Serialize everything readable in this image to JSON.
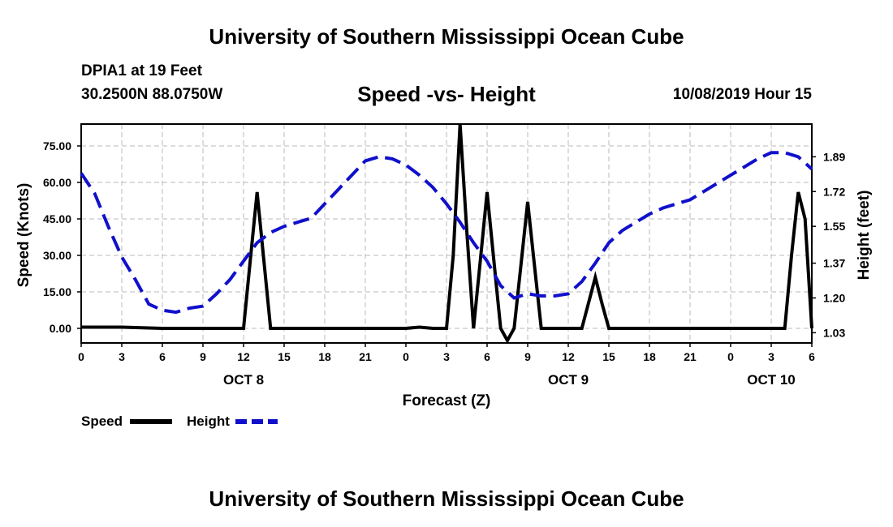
{
  "header": {
    "title": "University of Southern Mississippi Ocean Cube",
    "station": "DPIA1 at 19 Feet",
    "coordinates": "30.2500N 88.0750W",
    "date_hour": "10/08/2019 Hour 15"
  },
  "footer": {
    "title": "University of Southern Mississippi Ocean Cube"
  },
  "chart_data": {
    "type": "line",
    "title": "Speed -vs- Height",
    "xlabel": "Forecast (Z)",
    "ylabel": "Speed (Knots)",
    "y2label": "Height (feet)",
    "colors": {
      "Speed": "#000000",
      "Height": "#1010cc"
    },
    "x_range": [
      0,
      54
    ],
    "x_tick_labels": [
      "0",
      "3",
      "6",
      "9",
      "12",
      "15",
      "18",
      "21",
      "0",
      "3",
      "6",
      "9",
      "12",
      "15",
      "18",
      "21",
      "0",
      "3",
      "6"
    ],
    "x_tick_hours": [
      0,
      3,
      6,
      9,
      12,
      15,
      18,
      21,
      24,
      27,
      30,
      33,
      36,
      39,
      42,
      45,
      48,
      51,
      54
    ],
    "date_labels": [
      {
        "label": "OCT 8",
        "hour": 12
      },
      {
        "label": "OCT 9",
        "hour": 36
      },
      {
        "label": "OCT 10",
        "hour": 51
      }
    ],
    "ylim": [
      -6,
      84
    ],
    "y_ticks": [
      "0.00",
      "15.00",
      "30.00",
      "45.00",
      "60.00",
      "75.00"
    ],
    "y_tick_values": [
      0,
      15,
      30,
      45,
      60,
      75
    ],
    "y2lim": [
      0.98,
      2.05
    ],
    "y2_ticks": [
      "1.03",
      "1.20",
      "1.37",
      "1.55",
      "1.72",
      "1.89"
    ],
    "y2_tick_values": [
      1.03,
      1.2,
      1.37,
      1.55,
      1.72,
      1.89
    ],
    "grid": true,
    "legend": {
      "position": "bottom-left",
      "items": [
        "Speed",
        "Height"
      ]
    },
    "series": [
      {
        "name": "Speed",
        "axis": "left",
        "style": "solid",
        "x": [
          0,
          3,
          6,
          9,
          12,
          12.5,
          13,
          13.5,
          14,
          15,
          18,
          21,
          24,
          25,
          26,
          27,
          27.5,
          28,
          28.5,
          29,
          29.5,
          30,
          30.5,
          31,
          31.5,
          32,
          32.5,
          33,
          33.5,
          34,
          35,
          36,
          37,
          38,
          38.5,
          39,
          40,
          42,
          45,
          48,
          49,
          50,
          51,
          52,
          52.5,
          53,
          53.5,
          54
        ],
        "values": [
          0.5,
          0.5,
          0,
          0,
          0,
          28,
          56,
          28,
          0,
          0,
          0,
          0,
          0,
          0.5,
          0,
          0,
          30,
          84,
          40,
          0,
          28,
          56,
          28,
          0,
          -5,
          0,
          26,
          52,
          26,
          0,
          0,
          0,
          0,
          21,
          10,
          0,
          0,
          0,
          0,
          0,
          0,
          0,
          0,
          0,
          30,
          56,
          45,
          0
        ]
      },
      {
        "name": "Height",
        "axis": "right",
        "style": "dashed",
        "x": [
          0,
          1,
          2,
          3,
          4,
          5,
          6,
          7,
          8,
          9,
          10,
          11,
          12,
          13,
          14,
          15,
          16,
          17,
          18,
          19,
          20,
          21,
          22,
          23,
          24,
          25,
          26,
          27,
          28,
          29,
          30,
          31,
          32,
          33,
          34,
          35,
          36,
          37,
          38,
          39,
          40,
          41,
          42,
          43,
          44,
          45,
          46,
          47,
          48,
          49,
          50,
          51,
          52,
          53,
          54
        ],
        "values": [
          1.81,
          1.71,
          1.55,
          1.4,
          1.29,
          1.17,
          1.14,
          1.13,
          1.15,
          1.16,
          1.22,
          1.29,
          1.38,
          1.47,
          1.52,
          1.55,
          1.57,
          1.59,
          1.66,
          1.73,
          1.8,
          1.87,
          1.89,
          1.88,
          1.85,
          1.8,
          1.74,
          1.66,
          1.57,
          1.47,
          1.38,
          1.26,
          1.2,
          1.22,
          1.21,
          1.21,
          1.22,
          1.28,
          1.37,
          1.47,
          1.53,
          1.57,
          1.61,
          1.64,
          1.66,
          1.68,
          1.72,
          1.76,
          1.8,
          1.84,
          1.88,
          1.91,
          1.91,
          1.89,
          1.83
        ]
      }
    ]
  }
}
